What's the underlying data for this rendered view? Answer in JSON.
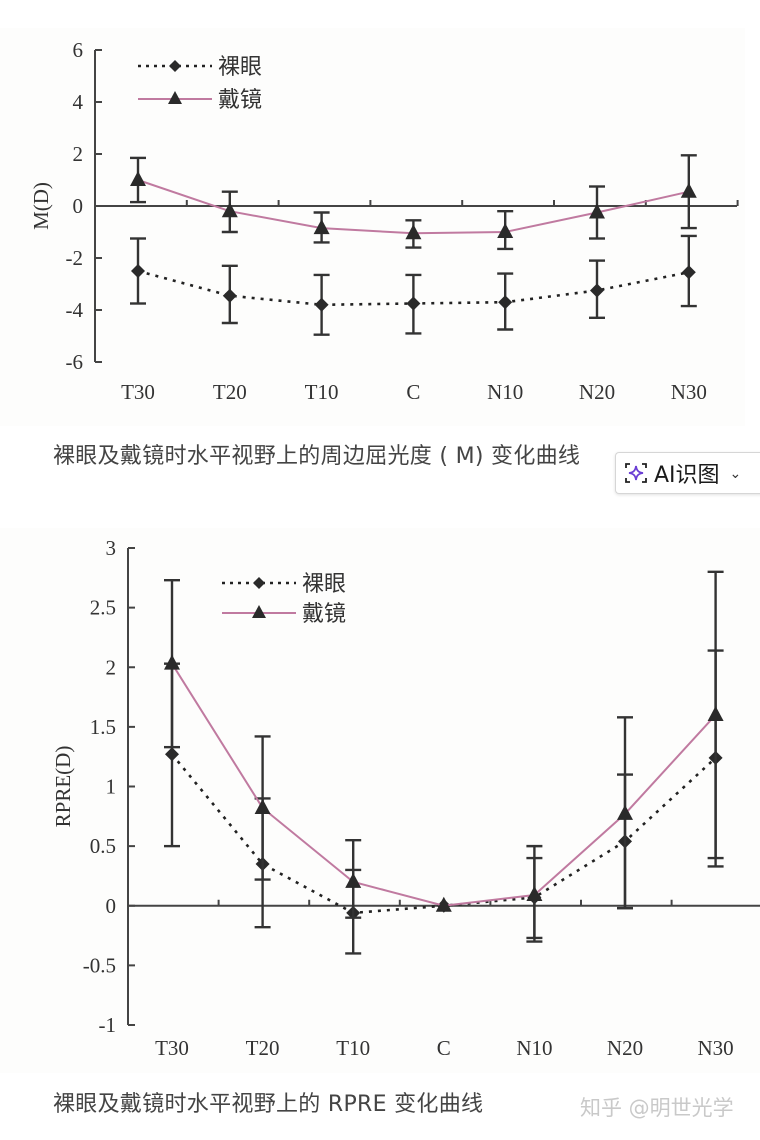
{
  "figures": [
    {
      "caption": "裸眼及戴镜时水平视野上的周边屈光度 ( M) 变化曲线",
      "ylabel": "M(D)",
      "legend": [
        "裸眼",
        "戴镜"
      ]
    },
    {
      "caption": "裸眼及戴镜时水平视野上的 RPRE 变化曲线",
      "ylabel": "RPRE(D)",
      "legend": [
        "裸眼",
        "戴镜"
      ]
    }
  ],
  "ai_button": {
    "label": "AI识图",
    "icon": "sparkle-scan-icon",
    "chevron": "⌄"
  },
  "watermark": "知乎 @明世光学",
  "colors": {
    "bare_eye": "#222222",
    "with_glasses": "#c07aa0",
    "axis": "#444444",
    "accent_icon": "#6b3fd4"
  },
  "chart_data": [
    {
      "type": "line",
      "title": "裸眼及戴镜时水平视野上的周边屈光度 ( M) 变化曲线",
      "xlabel": "",
      "ylabel": "M(D)",
      "categories": [
        "T30",
        "T20",
        "T10",
        "C",
        "N10",
        "N20",
        "N30"
      ],
      "yticks": [
        6,
        4,
        2,
        0,
        -2,
        -4,
        -6
      ],
      "ylim": [
        -6,
        6
      ],
      "grid": false,
      "legend_position": "top-left",
      "series": [
        {
          "name": "裸眼",
          "style": "dotted",
          "marker": "diamond",
          "color": "#222222",
          "values": [
            -2.5,
            -3.45,
            -3.8,
            -3.75,
            -3.7,
            -3.25,
            -2.55
          ],
          "err_low": [
            -3.75,
            -4.5,
            -4.95,
            -4.9,
            -4.75,
            -4.3,
            -3.85
          ],
          "err_high": [
            -1.25,
            -2.3,
            -2.65,
            -2.65,
            -2.6,
            -2.1,
            -1.15
          ]
        },
        {
          "name": "戴镜",
          "style": "solid",
          "marker": "triangle",
          "color": "#c07aa0",
          "values": [
            1.0,
            -0.2,
            -0.85,
            -1.05,
            -1.0,
            -0.25,
            0.55
          ],
          "err_low": [
            0.15,
            -1.0,
            -1.4,
            -1.6,
            -1.65,
            -1.25,
            -0.85
          ],
          "err_high": [
            1.85,
            0.55,
            -0.25,
            -0.55,
            -0.2,
            0.75,
            1.95
          ]
        }
      ]
    },
    {
      "type": "line",
      "title": "裸眼及戴镜时水平视野上的 RPRE 变化曲线",
      "xlabel": "",
      "ylabel": "RPRE(D)",
      "categories": [
        "T30",
        "T20",
        "T10",
        "C",
        "N10",
        "N20",
        "N30"
      ],
      "yticks": [
        3,
        2.5,
        2,
        1.5,
        1,
        0.5,
        0,
        -0.5,
        -1
      ],
      "ylim": [
        -1,
        3
      ],
      "grid": false,
      "legend_position": "top-left",
      "series": [
        {
          "name": "裸眼",
          "style": "dotted",
          "marker": "diamond",
          "color": "#222222",
          "values": [
            1.27,
            0.35,
            -0.06,
            0.0,
            0.07,
            0.54,
            1.24
          ],
          "err_low": [
            0.5,
            -0.18,
            -0.4,
            0.0,
            -0.27,
            -0.02,
            0.33
          ],
          "err_high": [
            2.03,
            0.9,
            0.3,
            0.0,
            0.4,
            1.1,
            2.14
          ]
        },
        {
          "name": "戴镜",
          "style": "solid",
          "marker": "triangle",
          "color": "#c07aa0",
          "values": [
            2.03,
            0.82,
            0.2,
            0.0,
            0.09,
            0.77,
            1.6
          ],
          "err_low": [
            1.33,
            0.22,
            -0.1,
            0.0,
            -0.3,
            -0.02,
            0.4
          ],
          "err_high": [
            2.73,
            1.42,
            0.55,
            0.0,
            0.5,
            1.58,
            2.8
          ]
        }
      ]
    }
  ]
}
